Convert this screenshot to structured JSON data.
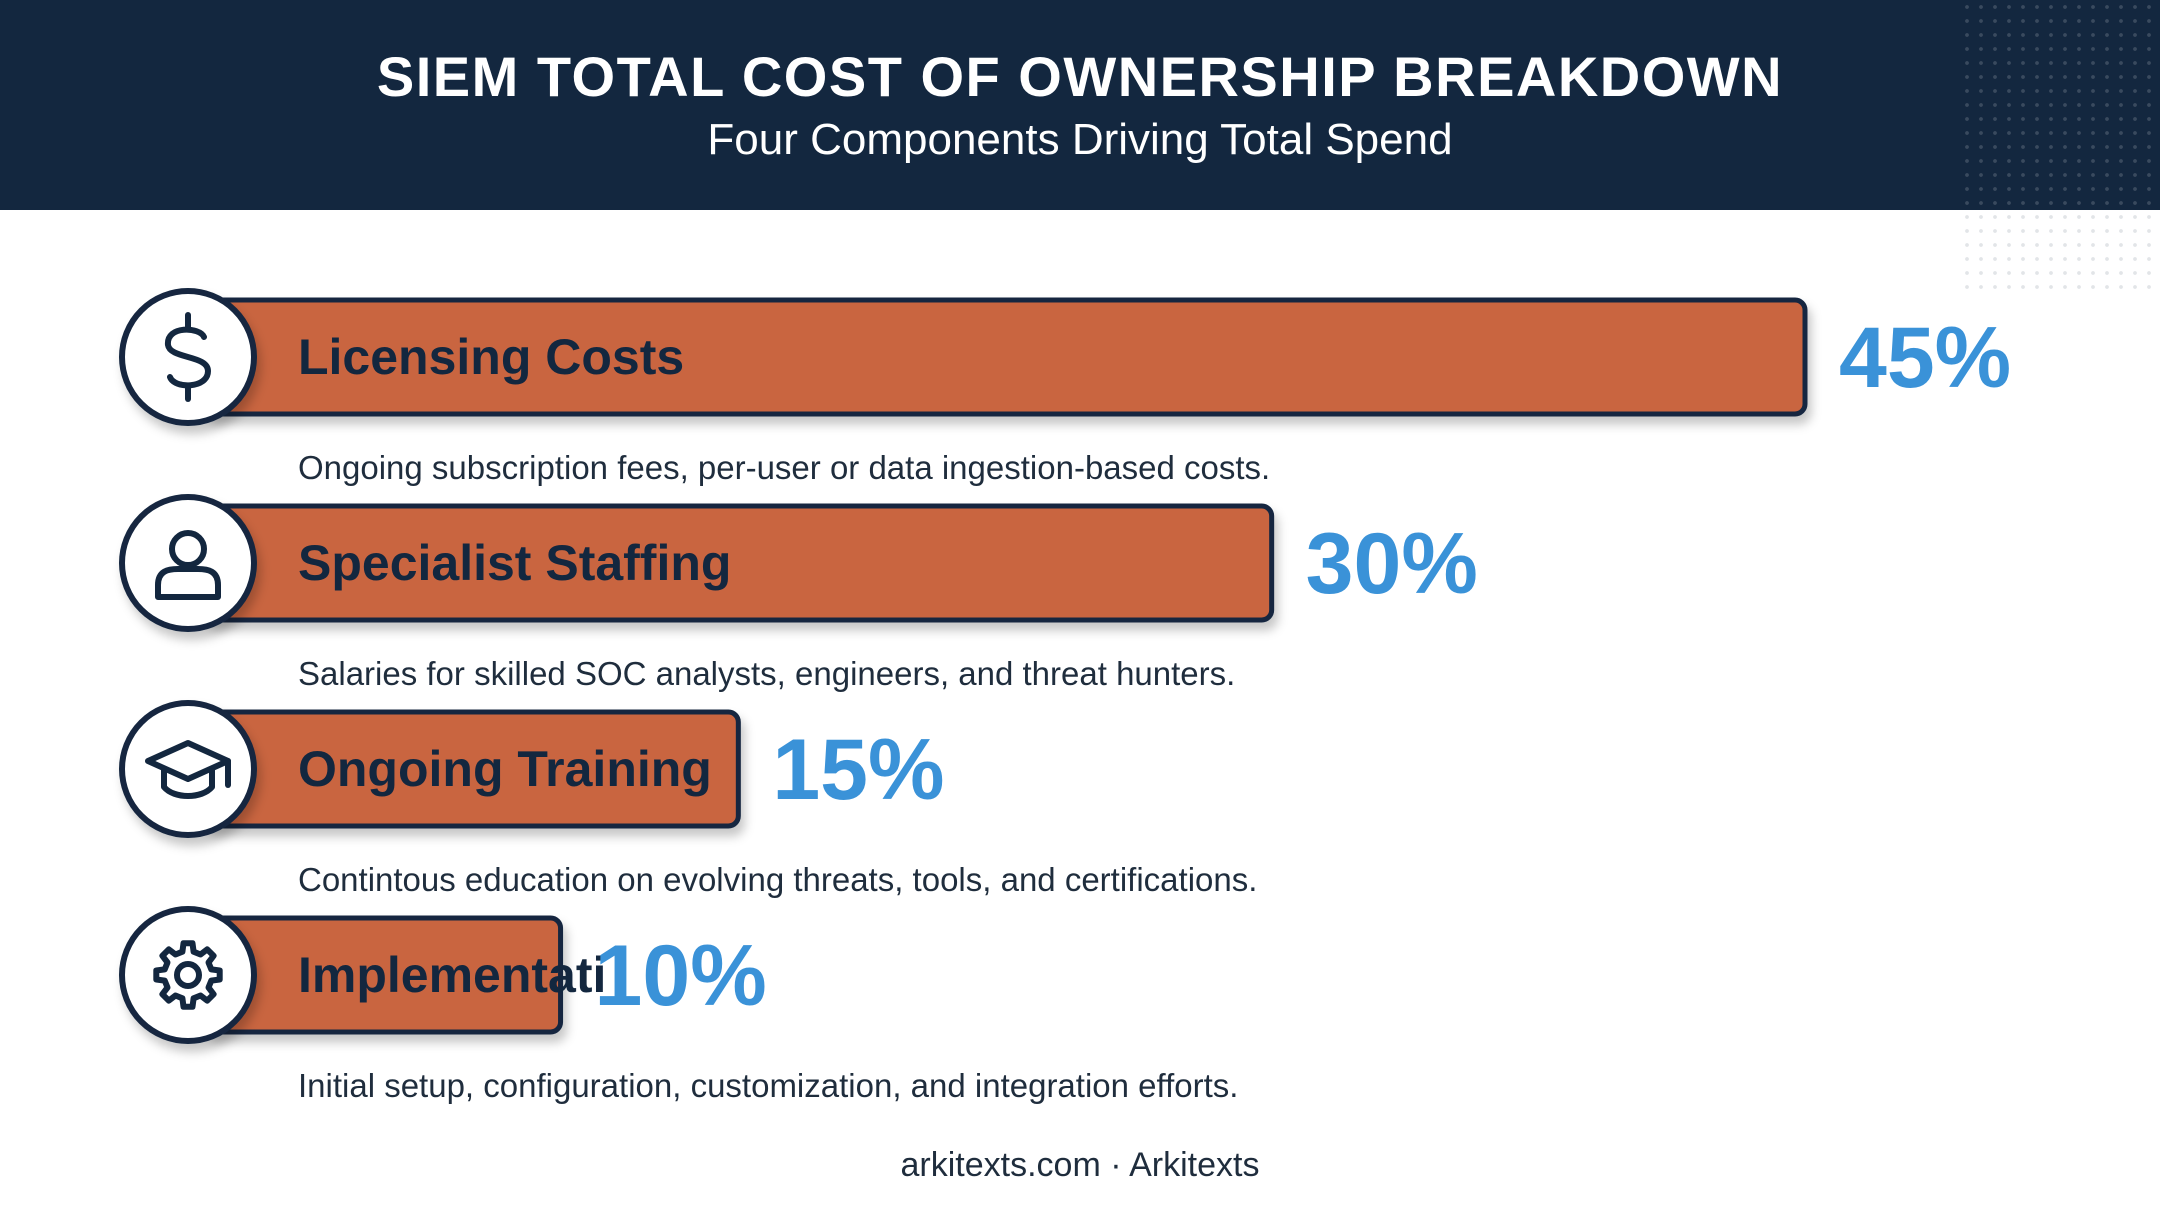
{
  "header": {
    "title": "SIEM TOTAL COST OF OWNERSHIP BREAKDOWN",
    "subtitle": "Four Components Driving Total Spend"
  },
  "chart_data": {
    "type": "bar",
    "orientation": "horizontal",
    "categories": [
      "Licensing Costs",
      "Specialist Staffing",
      "Ongoing Training",
      "Implementati"
    ],
    "values": [
      45,
      30,
      15,
      10
    ],
    "value_labels": [
      "45%",
      "30%",
      "15%",
      "10%"
    ],
    "descriptions": [
      "Ongoing subscription fees, per-user or data ingestion-based costs.",
      "Salaries for skilled SOC analysts, engineers, and threat hunters.",
      "Contintous education on evolving threats, tools, and certifications.",
      "Initial setup, configuration, customization, and integration efforts."
    ],
    "icons": [
      "dollar-icon",
      "person-icon",
      "graduation-cap-icon",
      "gear-icon"
    ],
    "xlim": [
      0,
      45
    ],
    "grid": false,
    "legend": "none"
  },
  "colors": {
    "header_bg": "#13273f",
    "bar_fill": "#c96541",
    "bar_outline": "#13273f",
    "value_text": "#3a92d8",
    "label_text": "#13273f",
    "description_text": "#1f2d3d"
  },
  "footer": {
    "credit": "arkitexts.com · Arkitexts"
  }
}
